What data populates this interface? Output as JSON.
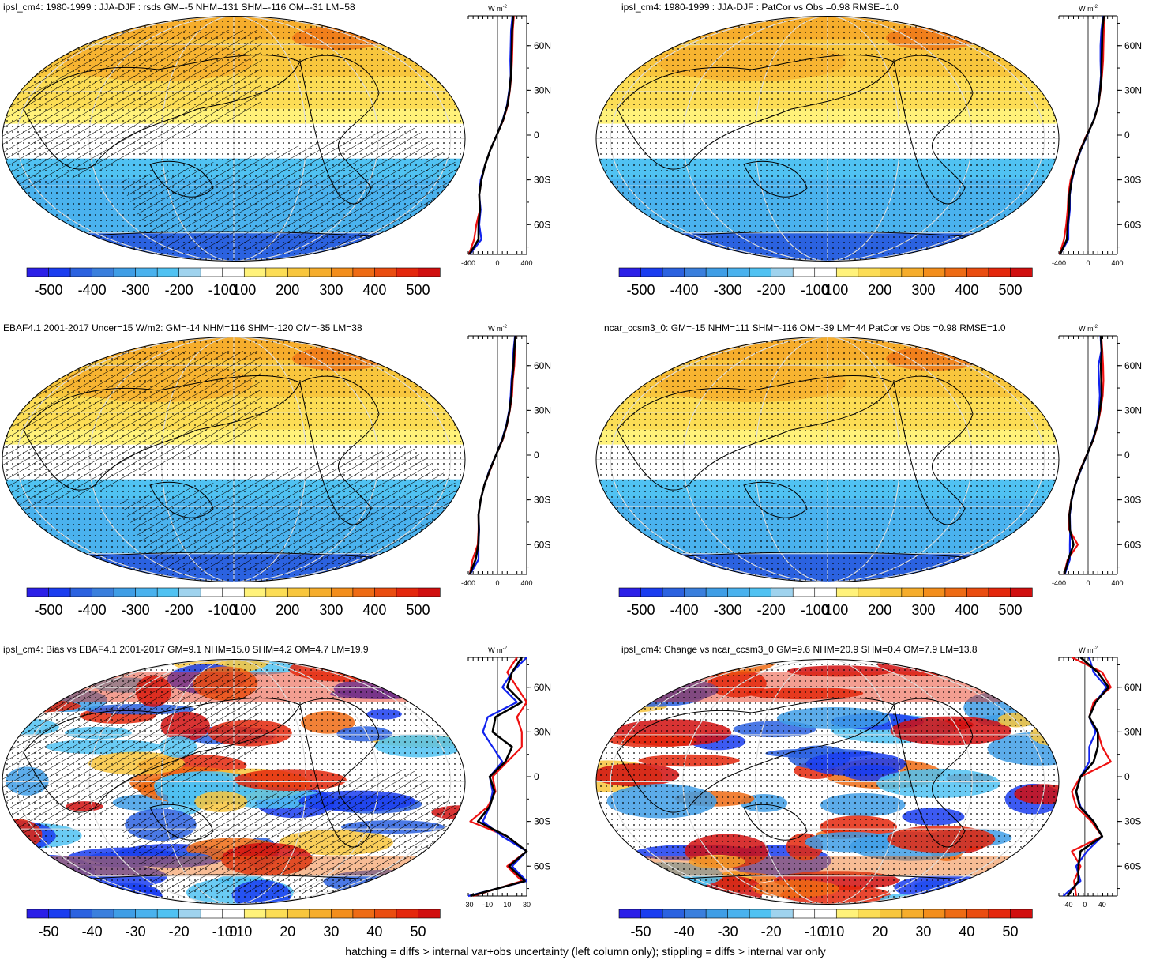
{
  "footnote": "hatching = diffs > internal var+obs uncertainty (left column only); stippling = diffs > internal var only",
  "colors": {
    "line_red": "#ee1111",
    "line_blue": "#1122ee",
    "line_black": "#000000",
    "stipple": "#000000",
    "graticule": "#dddddd"
  },
  "colorbar_colors": [
    "#2b1fe8",
    "#1a3df0",
    "#2b62e0",
    "#3a7fdd",
    "#3f9ee6",
    "#4ab2ee",
    "#50c2f2",
    "#9fd3ee",
    "#ffffff",
    "#ffffff",
    "#fff27a",
    "#fcdd55",
    "#f8c63d",
    "#f6ad2c",
    "#f38e1c",
    "#ee6b14",
    "#ea4d10",
    "#e4270c",
    "#d10f0f"
  ],
  "panels": [
    {
      "id": "p1",
      "title": "ipsl_cm4: 1980-1999 : JJA-DJF : rsds GM=-5 NHM=131 SHM=-116 OM=-31 LM=58",
      "kind": "seasonal",
      "hatch": true,
      "colorbar_labels": [
        "-500",
        "-400",
        "-300",
        "-200",
        "-100",
        "0",
        "100",
        "200",
        "300",
        "400",
        "500"
      ],
      "profile": {
        "unit": "W m",
        "unit_sup": "-2",
        "xticks": [
          "-400",
          "0",
          "400"
        ],
        "xlim": [
          -400,
          400
        ],
        "yticks": [
          "60N",
          "30N",
          "0",
          "30S",
          "60S"
        ]
      },
      "chart_data": {
        "type": "line",
        "x_units": "W m-2",
        "y": [
          -80,
          -70,
          -60,
          -50,
          -40,
          -30,
          -20,
          -10,
          0,
          10,
          20,
          30,
          40,
          50,
          60,
          70,
          80
        ],
        "series": [
          {
            "color": "#ee1111",
            "x": [
              -390,
              -320,
              -290,
              -240,
              -250,
              -220,
              -170,
              -100,
              -10,
              80,
              140,
              170,
              190,
              200,
              205,
              210,
              225
            ]
          },
          {
            "color": "#1122ee",
            "x": [
              -380,
              -220,
              -250,
              -230,
              -250,
              -230,
              -170,
              -100,
              -10,
              70,
              130,
              160,
              180,
              175,
              180,
              185,
              205
            ]
          },
          {
            "color": "#000000",
            "x": [
              -385,
              -260,
              -260,
              -240,
              -250,
              -220,
              -170,
              -100,
              -10,
              75,
              135,
              165,
              185,
              190,
              195,
              200,
              215
            ]
          }
        ]
      }
    },
    {
      "id": "p2",
      "title": "ipsl_cm4: 1980-1999 : JJA-DJF : PatCor vs Obs =0.98 RMSE=1.0",
      "kind": "seasonal",
      "hatch": false,
      "colorbar_labels": [
        "-500",
        "-400",
        "-300",
        "-200",
        "-100",
        "0",
        "100",
        "200",
        "300",
        "400",
        "500"
      ],
      "profile": {
        "unit": "W m",
        "unit_sup": "-2",
        "xticks": [
          "-400",
          "0",
          "400"
        ],
        "xlim": [
          -400,
          400
        ],
        "yticks": [
          "60N",
          "30N",
          "0",
          "30S",
          "60S"
        ]
      },
      "chart_data": {
        "type": "line",
        "x_units": "W m-2",
        "y": [
          -80,
          -70,
          -60,
          -50,
          -40,
          -30,
          -20,
          -10,
          0,
          10,
          20,
          30,
          40,
          50,
          60,
          70,
          80
        ],
        "series": [
          {
            "color": "#ee1111",
            "x": [
              -390,
              -330,
              -300,
              -280,
              -270,
              -240,
              -180,
              -110,
              -20,
              80,
              140,
              170,
              190,
              205,
              210,
              215,
              225
            ]
          },
          {
            "color": "#1122ee",
            "x": [
              -385,
              -270,
              -270,
              -250,
              -250,
              -220,
              -170,
              -100,
              -10,
              75,
              135,
              160,
              175,
              170,
              170,
              180,
              205
            ]
          },
          {
            "color": "#000000",
            "x": [
              -385,
              -290,
              -280,
              -260,
              -255,
              -225,
              -175,
              -105,
              -15,
              78,
              137,
              165,
              182,
              185,
              190,
              195,
              215
            ]
          }
        ]
      }
    },
    {
      "id": "p3",
      "title": "EBAF4.1 2001-2017 Uncer=15 W/m2: GM=-14 NHM=116 SHM=-120 OM=-35 LM=38",
      "kind": "seasonal",
      "hatch": true,
      "colorbar_labels": [
        "-500",
        "-400",
        "-300",
        "-200",
        "-100",
        "0",
        "100",
        "200",
        "300",
        "400",
        "500"
      ],
      "profile": {
        "unit": "W m",
        "unit_sup": "-2",
        "xticks": [
          "-400",
          "0",
          "400"
        ],
        "xlim": [
          -400,
          400
        ],
        "yticks": [
          "60N",
          "30N",
          "0",
          "30S",
          "60S"
        ]
      },
      "chart_data": {
        "type": "line",
        "x_units": "W m-2",
        "y": [
          -80,
          -70,
          -60,
          -50,
          -40,
          -30,
          -20,
          -10,
          0,
          10,
          20,
          30,
          40,
          50,
          60,
          70,
          80
        ],
        "series": [
          {
            "color": "#ee1111",
            "x": [
              -380,
              -340,
              -270,
              -260,
              -260,
              -230,
              -180,
              -100,
              -20,
              70,
              130,
              170,
              200,
              210,
              230,
              240,
              250
            ]
          },
          {
            "color": "#1122ee",
            "x": [
              -375,
              -260,
              -260,
              -250,
              -260,
              -230,
              -180,
              -110,
              -20,
              60,
              120,
              160,
              180,
              190,
              210,
              220,
              240
            ]
          },
          {
            "color": "#000000",
            "x": [
              -378,
              -300,
              -262,
              -255,
              -260,
              -230,
              -180,
              -105,
              -20,
              65,
              125,
              165,
              190,
              200,
              220,
              230,
              245
            ]
          }
        ]
      }
    },
    {
      "id": "p4",
      "title": "ncar_ccsm3_0: GM=-15 NHM=111 SHM=-116 OM=-39 LM=44 PatCor vs Obs =0.98 RMSE=1.0",
      "kind": "seasonal",
      "hatch": false,
      "colorbar_labels": [
        "-500",
        "-400",
        "-300",
        "-200",
        "-100",
        "0",
        "100",
        "200",
        "300",
        "400",
        "500"
      ],
      "profile": {
        "unit": "W m",
        "unit_sup": "-2",
        "xticks": [
          "-400",
          "0",
          "400"
        ],
        "xlim": [
          -400,
          400
        ],
        "yticks": [
          "60N",
          "30N",
          "0",
          "30S",
          "60S"
        ]
      },
      "chart_data": {
        "type": "line",
        "x_units": "W m-2",
        "y": [
          -80,
          -70,
          -60,
          -50,
          -40,
          -30,
          -20,
          -10,
          0,
          10,
          20,
          30,
          40,
          50,
          60,
          70,
          80
        ],
        "series": [
          {
            "color": "#ee1111",
            "x": [
              -330,
              -280,
              -140,
              -260,
              -260,
              -230,
              -180,
              -110,
              -20,
              70,
              130,
              170,
              200,
              210,
              205,
              195,
              180
            ]
          },
          {
            "color": "#1122ee",
            "x": [
              -320,
              -250,
              -250,
              -245,
              -250,
              -225,
              -175,
              -100,
              -15,
              60,
              120,
              150,
              160,
              150,
              140,
              180,
              170
            ]
          },
          {
            "color": "#000000",
            "x": [
              -325,
              -270,
              -200,
              -250,
              -255,
              -228,
              -178,
              -105,
              -18,
              65,
              125,
              160,
              185,
              180,
              175,
              185,
              175
            ]
          }
        ]
      }
    },
    {
      "id": "p5",
      "title": "ipsl_cm4: Bias vs EBAF4.1 2001-2017 GM=9.1 NHM=15.0 SHM=4.2 OM=4.7 LM=19.9",
      "kind": "bias",
      "hatch": true,
      "colorbar_labels": [
        "-50",
        "-40",
        "-30",
        "-20",
        "-10",
        "0",
        "10",
        "20",
        "30",
        "40",
        "50"
      ],
      "profile": {
        "unit": "W m",
        "unit_sup": "-2",
        "xticks": [
          "-30",
          "-10",
          "10",
          "30"
        ],
        "xlim": [
          -30,
          30
        ],
        "yticks": [
          "60N",
          "30N",
          "0",
          "30S",
          "60S"
        ]
      },
      "chart_data": {
        "type": "line",
        "x_units": "W m-2",
        "y": [
          -80,
          -70,
          -60,
          -50,
          -40,
          -30,
          -20,
          -10,
          0,
          10,
          20,
          30,
          40,
          50,
          60,
          70,
          80
        ],
        "series": [
          {
            "color": "#ee1111",
            "x": [
              -25,
              25,
              10,
              30,
              10,
              -28,
              -10,
              -2,
              -5,
              10,
              25,
              25,
              20,
              30,
              20,
              10,
              20
            ]
          },
          {
            "color": "#1122ee",
            "x": [
              -30,
              30,
              15,
              30,
              5,
              -15,
              -8,
              -5,
              -8,
              5,
              -5,
              -15,
              -10,
              20,
              5,
              15,
              30
            ]
          },
          {
            "color": "#000000",
            "x": [
              -28,
              28,
              12,
              30,
              10,
              -20,
              -8,
              -3,
              -8,
              8,
              15,
              -5,
              -2,
              25,
              10,
              15,
              25
            ]
          }
        ]
      }
    },
    {
      "id": "p6",
      "title": "ipsl_cm4: Change vs ncar_ccsm3_0 GM=9.6 NHM=20.9 SHM=0.4 OM=7.9 LM=13.8",
      "kind": "bias",
      "hatch": false,
      "colorbar_labels": [
        "-50",
        "-40",
        "-30",
        "-20",
        "-10",
        "0",
        "10",
        "20",
        "30",
        "40",
        "50"
      ],
      "profile": {
        "unit": "W m",
        "unit_sup": "-2",
        "xticks": [
          "-40",
          "0",
          "40"
        ],
        "xlim": [
          -60,
          75
        ],
        "yticks": [
          "60N",
          "30N",
          "0",
          "30S",
          "60S"
        ]
      },
      "chart_data": {
        "type": "line",
        "x_units": "W m-2",
        "y": [
          -80,
          -70,
          -60,
          -50,
          -40,
          -30,
          -20,
          -10,
          0,
          10,
          20,
          30,
          40,
          50,
          60,
          70,
          80
        ],
        "series": [
          {
            "color": "#ee1111",
            "x": [
              -20,
              -25,
              -10,
              -30,
              40,
              15,
              -20,
              -30,
              -10,
              60,
              40,
              30,
              10,
              20,
              60,
              40,
              -30
            ]
          },
          {
            "color": "#1122ee",
            "x": [
              -50,
              -10,
              -20,
              5,
              40,
              20,
              -10,
              -20,
              -10,
              10,
              10,
              25,
              10,
              25,
              50,
              20,
              10
            ]
          },
          {
            "color": "#000000",
            "x": [
              -40,
              -15,
              -15,
              -10,
              40,
              20,
              -12,
              -20,
              -10,
              20,
              30,
              30,
              10,
              25,
              55,
              30,
              -10
            ]
          }
        ]
      }
    }
  ]
}
